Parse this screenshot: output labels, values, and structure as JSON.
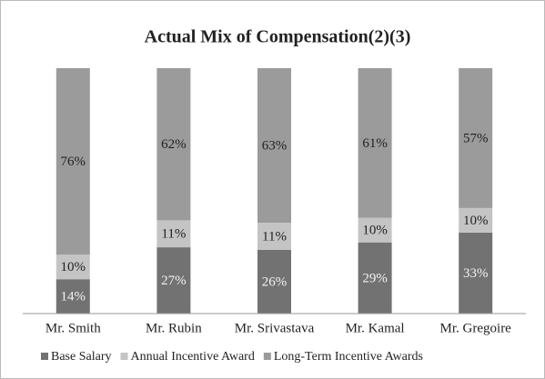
{
  "chart_data": {
    "type": "stacked_bar",
    "title": "Actual Mix of Compensation(2)(3)",
    "categories": [
      "Mr. Smith",
      "Mr. Rubin",
      "Mr. Srivastava",
      "Mr. Kamal",
      "Mr. Gregoire"
    ],
    "series": [
      {
        "name": "Base Salary",
        "color": "#727272",
        "values": [
          14,
          27,
          26,
          29,
          33
        ],
        "value_labels": [
          "14%",
          "27%",
          "26%",
          "29%",
          "33%"
        ]
      },
      {
        "name": "Annual Incentive Award",
        "color": "#c4c4c4",
        "values": [
          10,
          11,
          11,
          10,
          10
        ],
        "value_labels": [
          "10%",
          "11%",
          "11%",
          "10%",
          "10%"
        ]
      },
      {
        "name": "Long-Term Incentive Awards",
        "color": "#9b9b9b",
        "values": [
          76,
          62,
          63,
          61,
          57
        ],
        "value_labels": [
          "76%",
          "62%",
          "63%",
          "61%",
          "57%"
        ]
      }
    ],
    "legend": "bottom"
  }
}
